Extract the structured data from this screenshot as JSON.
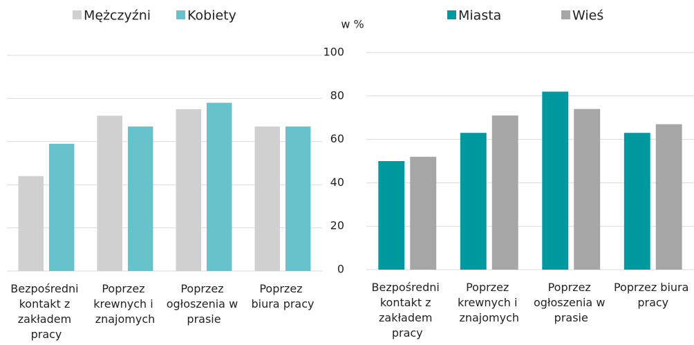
{
  "chart_data": [
    {
      "type": "bar",
      "categories": [
        "Bezpośredni kontakt z zakładem pracy",
        "Poprzez krewnych i znajomych",
        "Poprzez ogłoszenia w prasie",
        "Poprzez biura pracy"
      ],
      "series": [
        {
          "name": "Mężczyźni",
          "color": "#d0d0d0",
          "values": [
            44,
            72,
            75,
            67
          ]
        },
        {
          "name": "Kobiety",
          "color": "#66c2cb",
          "values": [
            59,
            67,
            78,
            67
          ]
        }
      ],
      "ylim": [
        0,
        100
      ],
      "yticks": [
        0,
        20,
        40,
        60,
        80,
        100
      ],
      "ytick_labels": false,
      "grid": true
    },
    {
      "type": "bar",
      "ylabel": "w %",
      "categories": [
        "Bezpośredni kontakt z zakładem pracy",
        "Poprzez krewnych i znajomych",
        "Poprzez ogłoszenia w prasie",
        "Poprzez biura pracy"
      ],
      "series": [
        {
          "name": "Miasta",
          "color": "#00999f",
          "values": [
            50,
            63,
            82,
            63
          ]
        },
        {
          "name": "Wieś",
          "color": "#a6a6a6",
          "values": [
            52,
            71,
            74,
            67
          ]
        }
      ],
      "ylim": [
        0,
        100
      ],
      "yticks": [
        0,
        20,
        40,
        60,
        80,
        100
      ],
      "ytick_labels": true,
      "grid": true
    }
  ]
}
